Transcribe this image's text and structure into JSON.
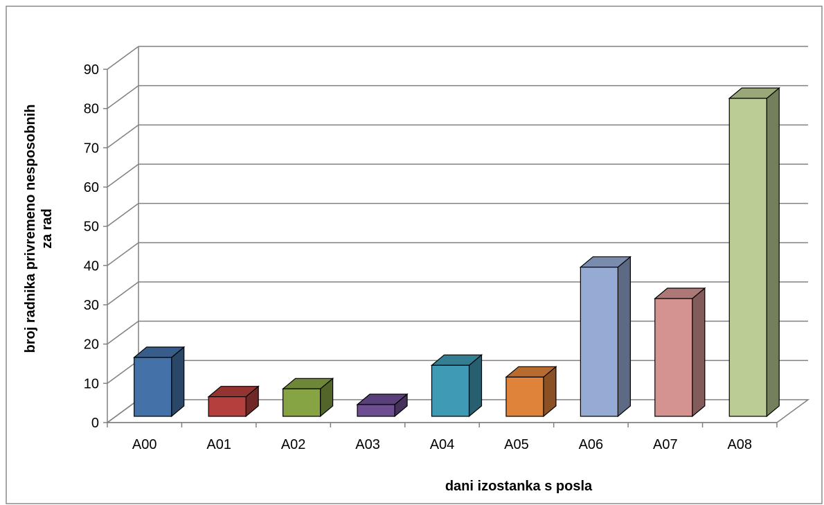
{
  "chart_data": {
    "type": "bar",
    "title": "",
    "xlabel": "dani izostanka s posla",
    "ylabel_lines": [
      "broj radnika privremeno nesposobnih",
      "za rad"
    ],
    "categories": [
      "A00",
      "A01",
      "A02",
      "A03",
      "A04",
      "A05",
      "A06",
      "A07",
      "A08"
    ],
    "values": [
      15,
      5,
      7,
      3,
      13,
      10,
      38,
      30,
      81
    ],
    "ylim": [
      0,
      90
    ],
    "yticks": [
      0,
      10,
      20,
      30,
      40,
      50,
      60,
      70,
      80,
      90
    ],
    "grid": true,
    "legend": "none",
    "bar_style": "3d-column",
    "colors": [
      "#4472A8",
      "#B3403D",
      "#86A444",
      "#6D4E92",
      "#3F9AB5",
      "#E0833A",
      "#95ABD4",
      "#D49291",
      "#BBCD94"
    ]
  }
}
